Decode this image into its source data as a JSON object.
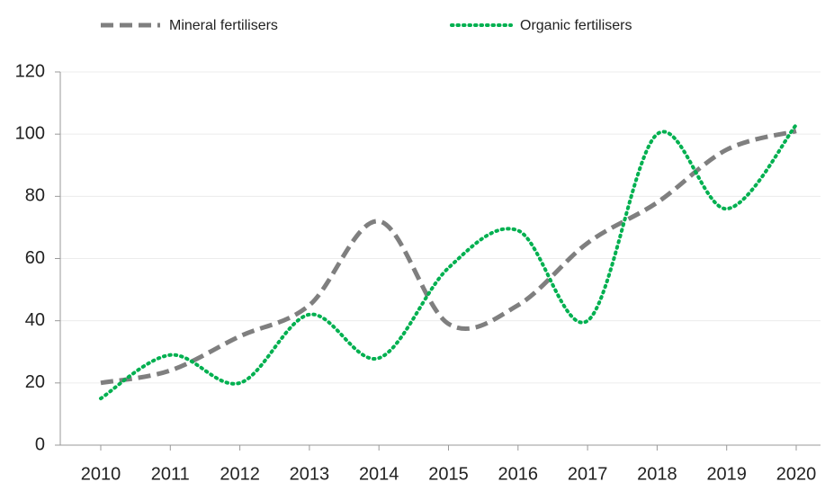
{
  "chart_data": {
    "type": "line",
    "categories": [
      "2010",
      "2011",
      "2012",
      "2013",
      "2014",
      "2015",
      "2016",
      "2017",
      "2018",
      "2019",
      "2020"
    ],
    "series": [
      {
        "name": "Mineral fertilisers",
        "color": "#7f7f7f",
        "style": "dashed",
        "values": [
          20,
          24,
          35,
          45,
          72,
          39,
          45,
          65,
          78,
          95,
          101
        ]
      },
      {
        "name": "Organic fertilisers",
        "color": "#00b050",
        "style": "dotted",
        "values": [
          15,
          29,
          20,
          42,
          28,
          57,
          69,
          40,
          100,
          76,
          103
        ]
      }
    ],
    "ylim": [
      0,
      120
    ],
    "yticks": [
      0,
      20,
      40,
      60,
      80,
      100,
      120
    ],
    "grid": true,
    "smooth": true,
    "legend": "top"
  }
}
